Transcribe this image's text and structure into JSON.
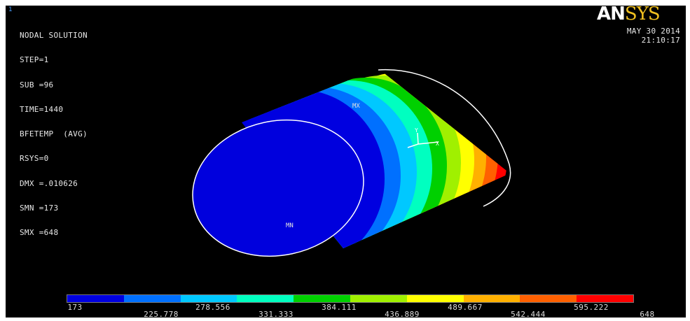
{
  "window_number": "1",
  "info_lines": [
    "NODAL SOLUTION",
    "STEP=1",
    "SUB =96",
    "TIME=1440",
    "BFETEMP  (AVG)",
    "RSYS=0",
    "DMX =.010626",
    "SMN =173",
    "SMX =648"
  ],
  "logo": {
    "part1": "AN",
    "part2": "SYS"
  },
  "date": "MAY 30 2014",
  "time": "21:10:17",
  "markers": {
    "min": "MN",
    "max": "MX"
  },
  "axis_labels": {
    "x": "X",
    "y": "Y"
  },
  "legend": {
    "colors": [
      "#0000e0",
      "#0070ff",
      "#00c8ff",
      "#00ffc0",
      "#00d000",
      "#a0f000",
      "#ffff00",
      "#ffb000",
      "#ff6000",
      "#ff0000"
    ],
    "labels": [
      "173",
      "225.778",
      "278.556",
      "331.333",
      "384.111",
      "436.889",
      "489.667",
      "542.444",
      "595.222",
      "648"
    ]
  }
}
